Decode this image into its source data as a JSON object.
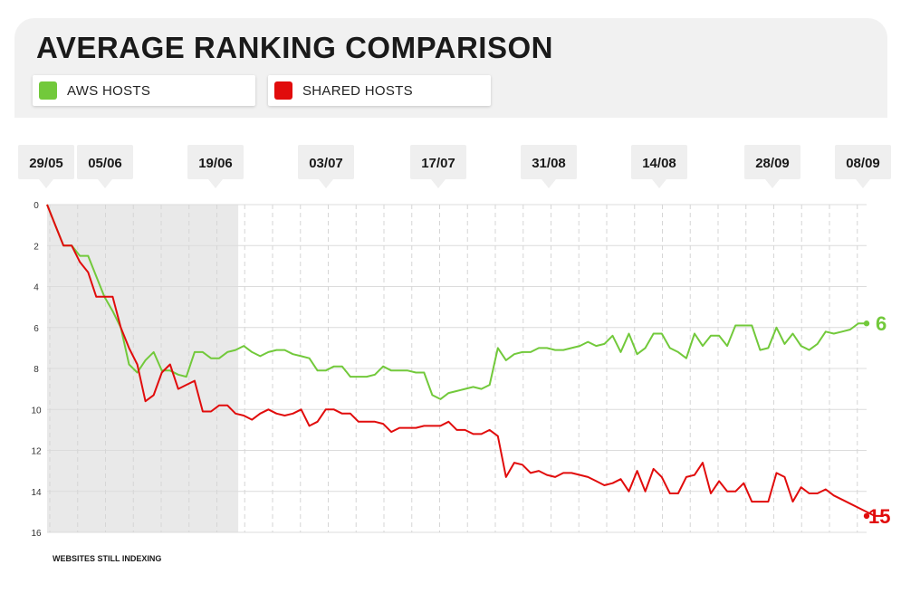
{
  "header": {
    "title": "AVERAGE RANKING COMPARISON",
    "legend": [
      {
        "label": "AWS HOSTS",
        "color": "#72c93b"
      },
      {
        "label": "SHARED HOSTS",
        "color": "#e10c0c"
      }
    ]
  },
  "chart_data": {
    "type": "line",
    "title": "AVERAGE RANKING COMPARISON",
    "xlabel": "",
    "ylabel": "",
    "y_axis": {
      "range": [
        0,
        16
      ],
      "inverted": true,
      "ticks": [
        0,
        2,
        4,
        6,
        8,
        10,
        12,
        14,
        16
      ]
    },
    "grid": true,
    "legend_position": "top-left",
    "date_markers": [
      "29/05",
      "05/06",
      "19/06",
      "03/07",
      "17/07",
      "31/08",
      "14/08",
      "28/09",
      "08/09"
    ],
    "annotations": [
      {
        "text": "WEBSITES STILL INDEXING",
        "x_range_index": [
          0,
          22
        ]
      }
    ],
    "end_labels": [
      {
        "series": "AWS HOSTS",
        "text": "6"
      },
      {
        "series": "SHARED HOSTS",
        "text": "15"
      }
    ],
    "series": [
      {
        "name": "AWS HOSTS",
        "color": "#72c93b",
        "values": [
          0.0,
          1.0,
          2.0,
          2.0,
          2.5,
          2.5,
          3.5,
          4.5,
          5.2,
          6.0,
          7.8,
          8.2,
          7.6,
          7.2,
          8.1,
          8.1,
          8.3,
          8.4,
          7.2,
          7.2,
          7.5,
          7.5,
          7.2,
          7.1,
          6.9,
          7.2,
          7.4,
          7.2,
          7.1,
          7.1,
          7.3,
          7.4,
          7.5,
          8.1,
          8.1,
          7.9,
          7.9,
          8.4,
          8.4,
          8.4,
          8.3,
          7.9,
          8.1,
          8.1,
          8.1,
          8.2,
          8.2,
          9.3,
          9.5,
          9.2,
          9.1,
          9.0,
          8.9,
          9.0,
          8.8,
          7.0,
          7.6,
          7.3,
          7.2,
          7.2,
          7.0,
          7.0,
          7.1,
          7.1,
          7.0,
          6.9,
          6.7,
          6.9,
          6.8,
          6.4,
          7.2,
          6.3,
          7.3,
          7.0,
          6.3,
          6.3,
          7.0,
          7.2,
          7.5,
          6.3,
          6.9,
          6.4,
          6.4,
          6.9,
          5.9,
          5.9,
          5.9,
          7.1,
          7.0,
          6.0,
          6.8,
          6.3,
          6.9,
          7.1,
          6.8,
          6.2,
          6.3,
          6.2,
          6.1,
          5.8,
          5.8
        ]
      },
      {
        "name": "SHARED HOSTS",
        "color": "#e10c0c",
        "values": [
          0.0,
          1.0,
          2.0,
          2.0,
          2.8,
          3.3,
          4.5,
          4.5,
          4.5,
          6.0,
          7.0,
          7.8,
          9.6,
          9.3,
          8.2,
          7.8,
          9.0,
          8.8,
          8.6,
          10.1,
          10.1,
          9.8,
          9.8,
          10.2,
          10.3,
          10.5,
          10.2,
          10.0,
          10.2,
          10.3,
          10.2,
          10.0,
          10.8,
          10.6,
          10.0,
          10.0,
          10.2,
          10.2,
          10.6,
          10.6,
          10.6,
          10.7,
          11.1,
          10.9,
          10.9,
          10.9,
          10.8,
          10.8,
          10.8,
          10.6,
          11.0,
          11.0,
          11.2,
          11.2,
          11.0,
          11.3,
          13.3,
          12.6,
          12.7,
          13.1,
          13.0,
          13.2,
          13.3,
          13.1,
          13.1,
          13.2,
          13.3,
          13.5,
          13.7,
          13.6,
          13.4,
          14.0,
          13.0,
          14.0,
          12.9,
          13.3,
          14.1,
          14.1,
          13.3,
          13.2,
          12.6,
          14.1,
          13.5,
          14.0,
          14.0,
          13.6,
          14.5,
          14.5,
          14.5,
          13.1,
          13.3,
          14.5,
          13.8,
          14.1,
          14.1,
          13.9,
          14.2,
          14.4,
          14.6,
          14.8,
          15.0,
          15.2,
          15.2
        ]
      }
    ]
  }
}
